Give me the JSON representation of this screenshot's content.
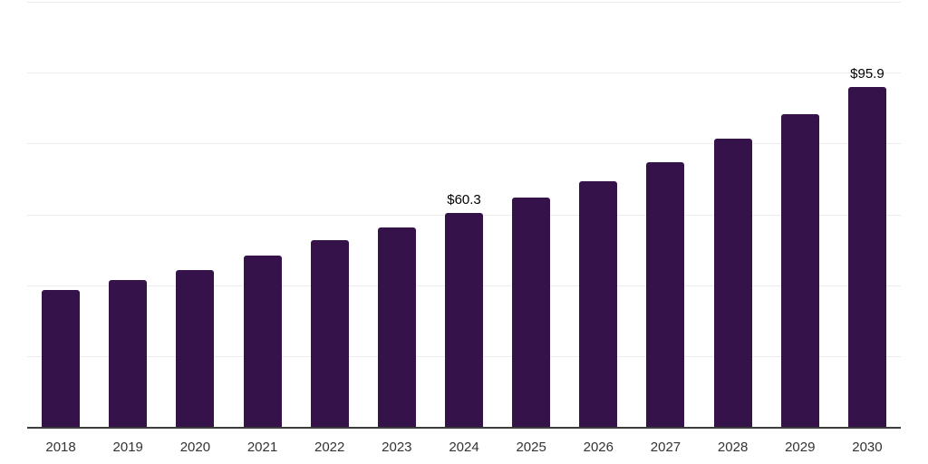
{
  "chart_data": {
    "type": "bar",
    "title": "",
    "xlabel": "",
    "ylabel": "",
    "categories": [
      "2018",
      "2019",
      "2020",
      "2021",
      "2022",
      "2023",
      "2024",
      "2025",
      "2026",
      "2027",
      "2028",
      "2029",
      "2030"
    ],
    "values": [
      38.7,
      41.4,
      44.2,
      48.3,
      52.8,
      56.3,
      60.3,
      64.7,
      69.4,
      74.8,
      81.3,
      88.3,
      95.9
    ],
    "value_labels": [
      {
        "index": 6,
        "text": "$60.3"
      },
      {
        "index": 12,
        "text": "$95.9"
      }
    ],
    "ylim": [
      0,
      120
    ],
    "gridline_step": 20,
    "grid": "horizontal-only",
    "legend": "none",
    "colors": {
      "bar_fill": "#36124b",
      "axis_line": "#3d3d3d",
      "gridline": "#ededed",
      "tick_label": "#333333",
      "value_label": "#000000"
    }
  }
}
